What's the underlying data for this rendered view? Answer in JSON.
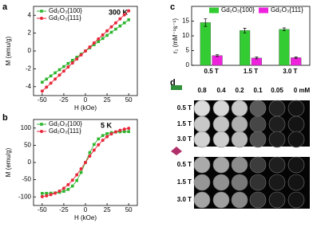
{
  "chart_data": [
    {
      "type": "line",
      "panel": "a",
      "annotation": "300 K",
      "xlabel": "H (kOe)",
      "ylabel": "M (emu/g)",
      "x": [
        -50,
        -45,
        -40,
        -35,
        -30,
        -25,
        -20,
        -15,
        -10,
        -5,
        0,
        5,
        10,
        15,
        20,
        25,
        30,
        35,
        40,
        45,
        50
      ],
      "series": [
        {
          "name": "Gd₂O₃{100}",
          "color": "#2db52d",
          "marker": "square",
          "values": [
            -3.5,
            -3.15,
            -2.8,
            -2.45,
            -2.1,
            -1.75,
            -1.4,
            -1.05,
            -0.7,
            -0.35,
            0,
            0.35,
            0.7,
            1.05,
            1.4,
            1.75,
            2.1,
            2.45,
            2.8,
            3.15,
            3.5
          ]
        },
        {
          "name": "Gd₂O₃{111}",
          "color": "#e8283c",
          "marker": "circle",
          "values": [
            -4.5,
            -4.05,
            -3.6,
            -3.15,
            -2.7,
            -2.25,
            -1.8,
            -1.35,
            -0.9,
            -0.45,
            0,
            0.45,
            0.9,
            1.35,
            1.8,
            2.25,
            2.7,
            3.15,
            3.6,
            4.05,
            4.5
          ]
        }
      ],
      "xlim": [
        -60,
        60
      ],
      "xticks": [
        -50,
        -25,
        0,
        25,
        50
      ],
      "ylim": [
        -5,
        5
      ],
      "yticks": [
        -4,
        -2,
        0,
        2,
        4
      ]
    },
    {
      "type": "line",
      "panel": "b",
      "annotation": "5 K",
      "xlabel": "H (kOe)",
      "ylabel": "M (emu/g)",
      "x": [
        -50,
        -45,
        -40,
        -35,
        -30,
        -25,
        -20,
        -15,
        -10,
        -5,
        0,
        5,
        10,
        15,
        20,
        25,
        30,
        35,
        40,
        45,
        50
      ],
      "series": [
        {
          "name": "Gd₂O₃{100}",
          "color": "#2db52d",
          "marker": "square",
          "values": [
            -89.8,
            -89.6,
            -89.1,
            -88.3,
            -86.8,
            -83.8,
            -78.3,
            -68.5,
            -52.5,
            -28.9,
            0,
            28.9,
            52.5,
            68.5,
            78.3,
            83.8,
            86.8,
            88.3,
            89.1,
            89.6,
            89.8
          ]
        },
        {
          "name": "Gd₂O₃{111}",
          "color": "#e8283c",
          "marker": "circle",
          "values": [
            -99.2,
            -96.9,
            -93.6,
            -89.1,
            -83,
            -74.9,
            -64.4,
            -51.4,
            -36,
            -18.6,
            0,
            18.6,
            36,
            51.4,
            64.4,
            74.9,
            83,
            89.1,
            93.6,
            96.9,
            99.2
          ]
        }
      ],
      "xlim": [
        -60,
        60
      ],
      "xticks": [
        -50,
        -25,
        0,
        25,
        50
      ],
      "ylim": [
        -125,
        125
      ],
      "yticks": [
        -100,
        -50,
        0,
        50,
        100
      ]
    },
    {
      "type": "bar",
      "panel": "c",
      "ylabel": "r₁ (mM⁻¹s⁻¹)",
      "categories": [
        "0.5 T",
        "1.5 T",
        "3.0 T"
      ],
      "series": [
        {
          "name": "Gd₂O₃{100}",
          "color": "#33cc33",
          "values": [
            14.5,
            11.8,
            12.2
          ],
          "errors": [
            1.3,
            0.8,
            0.5
          ]
        },
        {
          "name": "Gd₂O₃{111}",
          "color": "#ee22dd",
          "values": [
            3.3,
            2.5,
            2.6
          ],
          "errors": [
            0.3,
            0.3,
            0.2
          ]
        }
      ],
      "ylim": [
        0,
        20
      ],
      "yticks": [
        0,
        5,
        10,
        15
      ]
    }
  ],
  "panel_d": {
    "panel": "d",
    "concentrations": [
      "0.8",
      "0.4",
      "0.2",
      "0.1",
      "0.05",
      "0 mM"
    ],
    "groups": [
      {
        "fields": [
          "0.5 T",
          "1.5 T",
          "3.0 T"
        ]
      },
      {
        "fields": [
          "0.5 T",
          "1.5 T",
          "3.0 T"
        ]
      }
    ]
  }
}
